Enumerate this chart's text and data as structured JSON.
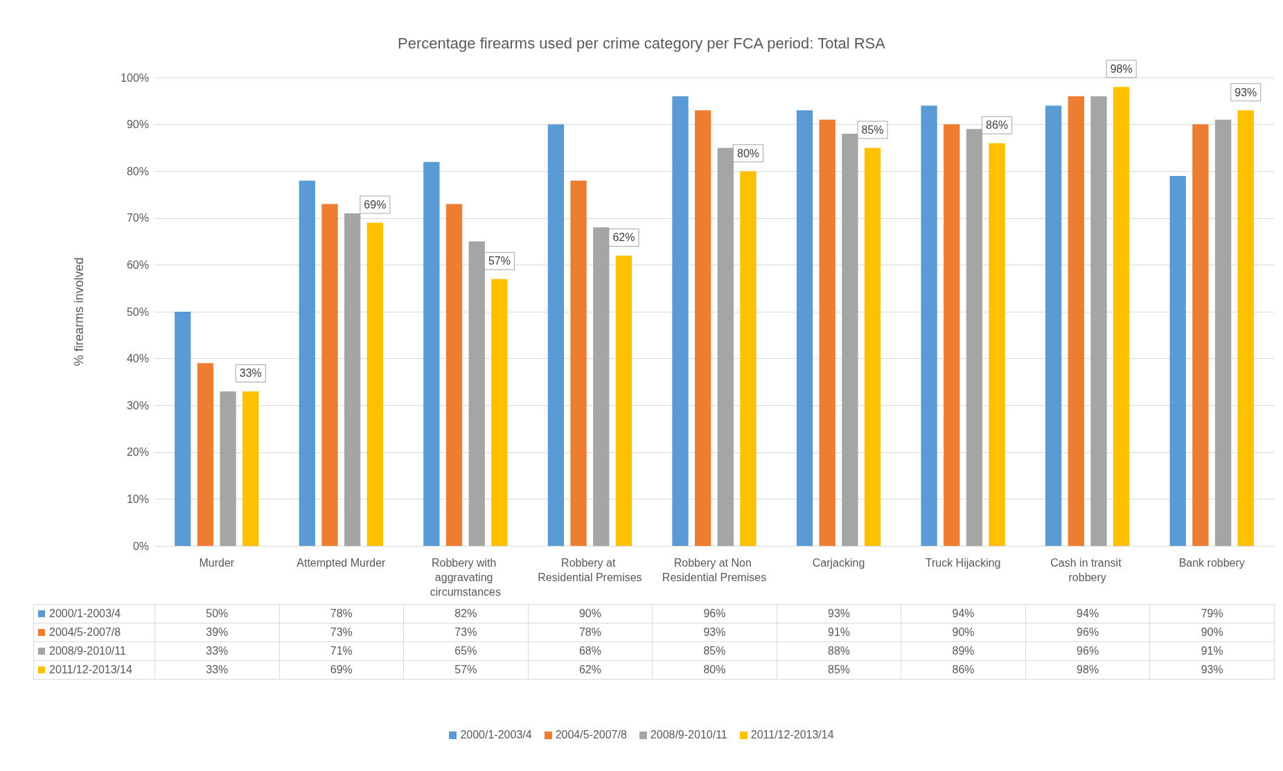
{
  "chart_data": {
    "type": "bar",
    "title": "Percentage firearms used per crime category per FCA period: Total RSA",
    "ylabel": "% firearms involved",
    "categories": [
      "Murder",
      "Attempted Murder",
      "Robbery with aggravating circumstances",
      "Robbery at Residential Premises",
      "Robbery at Non Residential Premises",
      "Carjacking",
      "Truck Hijacking",
      "Cash in transit robbery",
      "Bank robbery"
    ],
    "series": [
      {
        "name": "2000/1-2003/4",
        "color": "#5b9bd5",
        "values": [
          50,
          78,
          82,
          90,
          96,
          93,
          94,
          94,
          79
        ],
        "value_labels": [
          "50%",
          "78%",
          "82%",
          "90%",
          "96%",
          "93%",
          "94%",
          "94%",
          "79%"
        ]
      },
      {
        "name": "2004/5-2007/8",
        "color": "#ed7d31",
        "values": [
          39,
          73,
          73,
          78,
          93,
          91,
          90,
          96,
          90
        ],
        "value_labels": [
          "39%",
          "73%",
          "73%",
          "78%",
          "93%",
          "91%",
          "90%",
          "96%",
          "90%"
        ]
      },
      {
        "name": "2008/9-2010/11",
        "color": "#a5a5a5",
        "values": [
          33,
          71,
          65,
          68,
          85,
          88,
          89,
          96,
          91
        ],
        "value_labels": [
          "33%",
          "71%",
          "65%",
          "68%",
          "85%",
          "88%",
          "89%",
          "96%",
          "91%"
        ]
      },
      {
        "name": "2011/12-2013/14",
        "color": "#ffc000",
        "values": [
          33,
          69,
          57,
          62,
          80,
          85,
          86,
          98,
          93
        ],
        "value_labels": [
          "33%",
          "69%",
          "57%",
          "62%",
          "80%",
          "85%",
          "86%",
          "98%",
          "93%"
        ]
      }
    ],
    "ylim": [
      0,
      100
    ],
    "yticks": [
      {
        "value": 0,
        "label": "0%"
      },
      {
        "value": 10,
        "label": "10%"
      },
      {
        "value": 20,
        "label": "20%"
      },
      {
        "value": 30,
        "label": "30%"
      },
      {
        "value": 40,
        "label": "40%"
      },
      {
        "value": 50,
        "label": "50%"
      },
      {
        "value": 60,
        "label": "60%"
      },
      {
        "value": 70,
        "label": "70%"
      },
      {
        "value": 80,
        "label": "80%"
      },
      {
        "value": 90,
        "label": "90%"
      },
      {
        "value": 100,
        "label": "100%"
      }
    ],
    "grid": "y",
    "legend": "bottom"
  }
}
